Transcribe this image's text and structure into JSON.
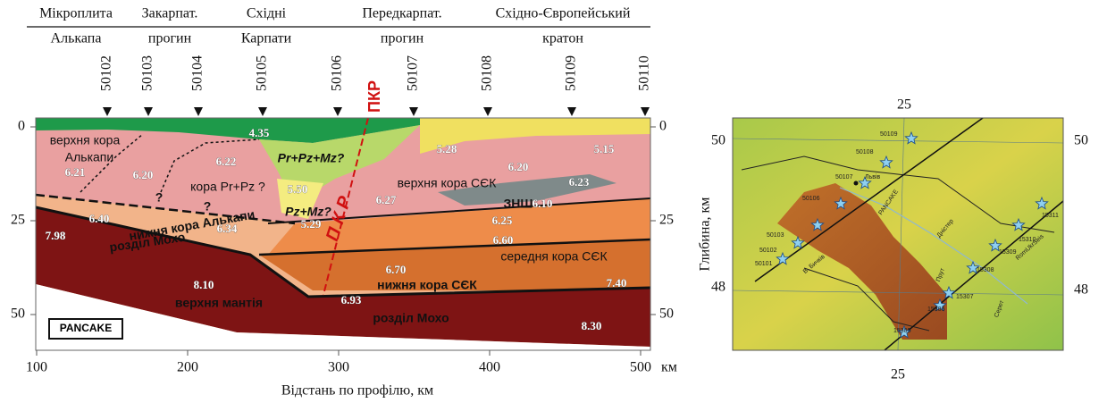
{
  "profile": {
    "regions": [
      {
        "top": "Мікроплита",
        "bottom": "Алькапа"
      },
      {
        "top": "Закарпат.",
        "bottom": "прогин"
      },
      {
        "top": "Східні",
        "bottom": "Карпати"
      },
      {
        "top": "Передкарпат.",
        "bottom": "прогин"
      },
      {
        "top": "Східно-Європейський",
        "bottom": "кратон"
      }
    ],
    "stations": [
      "50102",
      "50103",
      "50104",
      "50105",
      "50106",
      "50107",
      "50108",
      "50109",
      "50110"
    ],
    "depth_ticks": [
      0,
      25,
      50
    ],
    "distance_ticks": [
      100,
      200,
      300,
      400,
      500
    ],
    "distance_unit": "км",
    "x_label": "Відстань по профілю, км",
    "fault_top": "ПКР",
    "fault_line": "П К Р",
    "inset": "PANCAKE",
    "layer_labels": [
      "верхня кора",
      "Алькапи",
      "кора Pr+Pz ?",
      "Pr+Pz+Mz?",
      "Pz+Mz?",
      "верхня кора СЄК",
      "ЗНШ",
      "нижня кора Алькапи",
      "розділ Мохо",
      "середня кора СЄК",
      "нижня кора СЄК",
      "верхня мантія",
      "розділ Мохо",
      "?",
      "?"
    ],
    "velocities": [
      "4.35",
      "5.28",
      "5.15",
      "6.20",
      "6.23",
      "6.21",
      "6.20",
      "6.22",
      "5.50",
      "6.27",
      "6.10",
      "6.25",
      "6.40",
      "6.34",
      "5.29",
      "6.60",
      "7.98",
      "6.70",
      "8.10",
      "6.93",
      "7.40",
      "8.30"
    ]
  },
  "map": {
    "y_label": "Глибина, км",
    "lon_top": "25",
    "lon_bottom": "25",
    "lat_left": [
      "50",
      "48"
    ],
    "lat_right": [
      "50",
      "48"
    ],
    "places": [
      "Львів",
      "PANCAKE",
      "RomUkrSeis",
      "В. Бичків",
      "Дністер",
      "Прут",
      "Серет"
    ],
    "station_labels": [
      "50101",
      "50102",
      "50103",
      "50106",
      "50107",
      "50108",
      "50109",
      "15305",
      "15306",
      "15307",
      "15308",
      "15309",
      "15310",
      "15311"
    ]
  }
}
